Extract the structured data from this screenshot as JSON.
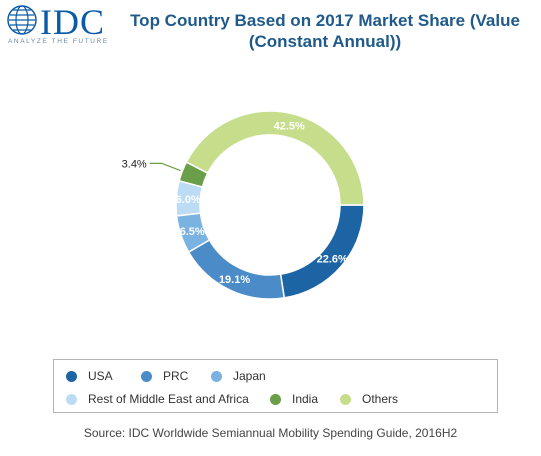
{
  "logo": {
    "text": "IDC",
    "tagline": "ANALYZE THE FUTURE"
  },
  "chart_data": {
    "type": "pie",
    "title": "Top Country Based on 2017 Market Share (Value (Constant Annual))",
    "title_lines": [
      "Top Country Based on 2017 Market Share (Value",
      "(Constant Annual))"
    ],
    "categories": [
      "USA",
      "PRC",
      "Japan",
      "Rest of Middle East and Africa",
      "India",
      "Others"
    ],
    "values": [
      22.6,
      19.1,
      6.5,
      6.0,
      3.4,
      42.5
    ],
    "labels": [
      "22.6%",
      "19.1%",
      "6.5%",
      "6.0%",
      "3.4%",
      "42.5%"
    ],
    "colors": [
      "#1c64a4",
      "#4b8cc8",
      "#7ab2e2",
      "#bcdcf5",
      "#6a9e48",
      "#c6de8c"
    ],
    "style": "donut",
    "legend_position": "bottom",
    "source": "Source: IDC Worldwide Semiannual Mobility Spending Guide, 2016H2"
  }
}
